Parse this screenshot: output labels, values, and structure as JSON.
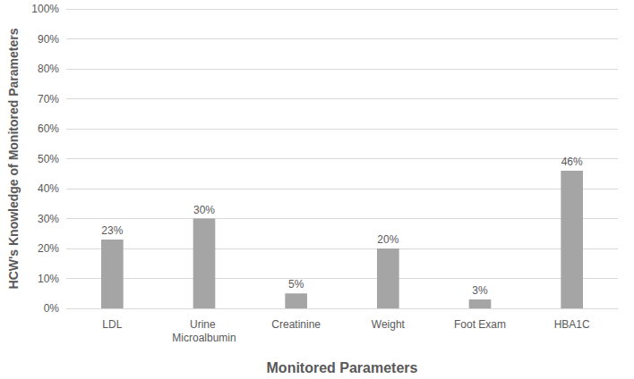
{
  "chart_data": {
    "type": "bar",
    "x_label": "Monitored Parameters",
    "y_label": "HCW's Knowledge of Monitored Parameters",
    "categories": [
      "LDL",
      "Urine Microalbumin",
      "Creatinine",
      "Weight",
      "Foot Exam",
      "HBA1C"
    ],
    "values": [
      23,
      30,
      5,
      20,
      3,
      46
    ],
    "value_labels": [
      "23%",
      "30%",
      "5%",
      "20%",
      "3%",
      "46%"
    ],
    "color": "#a5a5a5",
    "ylim": [
      0,
      100
    ],
    "yticks": [
      {
        "value": 0,
        "label": "0%"
      },
      {
        "value": 10,
        "label": "10%"
      },
      {
        "value": 20,
        "label": "20%"
      },
      {
        "value": 30,
        "label": "30%"
      },
      {
        "value": 40,
        "label": "40%"
      },
      {
        "value": 50,
        "label": "50%"
      },
      {
        "value": 60,
        "label": "60%"
      },
      {
        "value": 70,
        "label": "70%"
      },
      {
        "value": 80,
        "label": "80%"
      },
      {
        "value": 90,
        "label": "90%"
      },
      {
        "value": 100,
        "label": "100%"
      }
    ],
    "grid": true,
    "data_labels": true
  }
}
